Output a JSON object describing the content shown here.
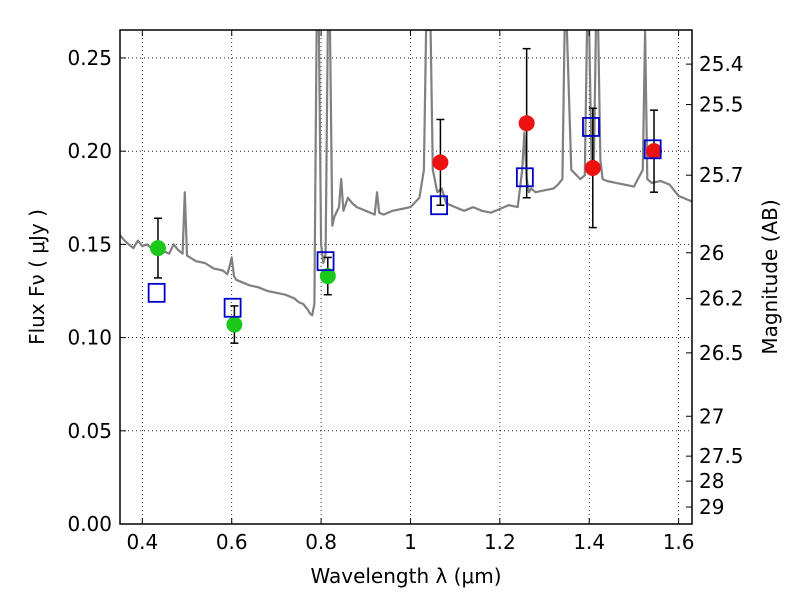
{
  "chart_data": {
    "type": "scatter",
    "xlabel": "Wavelength  λ (μm)",
    "ylabel": "Flux  Fν  ( μJy )",
    "y2label": "Magnitude (AB)",
    "xlim": [
      0.35,
      1.63
    ],
    "ylim": [
      0.0,
      0.265
    ],
    "grid": true,
    "x_ticks": [
      0.4,
      0.6,
      0.8,
      1.0,
      1.2,
      1.4,
      1.6
    ],
    "x_tick_labels": [
      "0.4",
      "0.6",
      "0.8",
      "1",
      "1.2",
      "1.4",
      "1.6"
    ],
    "y_ticks": [
      0.0,
      0.05,
      0.1,
      0.15,
      0.2,
      0.25
    ],
    "y_tick_labels": [
      "0.00",
      "0.05",
      "0.10",
      "0.15",
      "0.20",
      "0.25"
    ],
    "y2_ticks": [
      {
        "label": "25.4",
        "flux": 0.2467
      },
      {
        "label": "25.5",
        "flux": 0.225
      },
      {
        "label": "25.7",
        "flux": 0.1871
      },
      {
        "label": "26",
        "flux": 0.1455
      },
      {
        "label": "26.2",
        "flux": 0.1209
      },
      {
        "label": "26.5",
        "flux": 0.0918
      },
      {
        "label": "27",
        "flux": 0.0578
      },
      {
        "label": "27.5",
        "flux": 0.0364
      },
      {
        "label": "28",
        "flux": 0.023
      },
      {
        "label": "29",
        "flux": 0.0091
      }
    ],
    "series": [
      {
        "kind": "line",
        "color": "#808080",
        "x": [
          0.35,
          0.36,
          0.37,
          0.38,
          0.39,
          0.4,
          0.41,
          0.42,
          0.43,
          0.44,
          0.45,
          0.46,
          0.47,
          0.48,
          0.49,
          0.495,
          0.5,
          0.52,
          0.54,
          0.56,
          0.58,
          0.59,
          0.595,
          0.6,
          0.605,
          0.61,
          0.62,
          0.64,
          0.66,
          0.68,
          0.7,
          0.72,
          0.74,
          0.75,
          0.76,
          0.77,
          0.775,
          0.78,
          0.785,
          0.79,
          0.795,
          0.8,
          0.805,
          0.81,
          0.815,
          0.82,
          0.825,
          0.83,
          0.84,
          0.845,
          0.85,
          0.86,
          0.87,
          0.88,
          0.9,
          0.92,
          0.925,
          0.93,
          0.94,
          0.96,
          0.98,
          1.0,
          1.02,
          1.03,
          1.035,
          1.04,
          1.045,
          1.05,
          1.06,
          1.07,
          1.08,
          1.1,
          1.12,
          1.14,
          1.16,
          1.18,
          1.2,
          1.22,
          1.24,
          1.25,
          1.255,
          1.26,
          1.265,
          1.27,
          1.28,
          1.3,
          1.32,
          1.33,
          1.34,
          1.345,
          1.35,
          1.36,
          1.38,
          1.39,
          1.395,
          1.4,
          1.405,
          1.41,
          1.415,
          1.42,
          1.425,
          1.43,
          1.44,
          1.46,
          1.48,
          1.5,
          1.52,
          1.525,
          1.53,
          1.54,
          1.56,
          1.58,
          1.6,
          1.62,
          1.63
        ],
        "y": [
          0.155,
          0.152,
          0.15,
          0.148,
          0.152,
          0.149,
          0.15,
          0.148,
          0.147,
          0.146,
          0.146,
          0.145,
          0.15,
          0.147,
          0.145,
          0.178,
          0.144,
          0.141,
          0.14,
          0.137,
          0.136,
          0.134,
          0.138,
          0.143,
          0.133,
          0.131,
          0.13,
          0.128,
          0.127,
          0.125,
          0.124,
          0.123,
          0.121,
          0.119,
          0.118,
          0.115,
          0.113,
          0.112,
          0.118,
          0.265,
          0.265,
          0.15,
          0.14,
          0.145,
          0.265,
          0.265,
          0.16,
          0.165,
          0.17,
          0.185,
          0.168,
          0.175,
          0.172,
          0.17,
          0.168,
          0.166,
          0.178,
          0.167,
          0.166,
          0.168,
          0.169,
          0.17,
          0.175,
          0.19,
          0.265,
          0.265,
          0.265,
          0.19,
          0.178,
          0.18,
          0.172,
          0.17,
          0.168,
          0.17,
          0.168,
          0.167,
          0.169,
          0.171,
          0.17,
          0.19,
          0.21,
          0.185,
          0.178,
          0.18,
          0.178,
          0.179,
          0.18,
          0.182,
          0.185,
          0.265,
          0.265,
          0.19,
          0.185,
          0.187,
          0.265,
          0.265,
          0.195,
          0.188,
          0.265,
          0.265,
          0.195,
          0.185,
          0.184,
          0.183,
          0.182,
          0.181,
          0.19,
          0.265,
          0.185,
          0.183,
          0.184,
          0.182,
          0.176,
          0.174,
          0.173
        ]
      },
      {
        "kind": "points",
        "marker": "circle",
        "color": "#19c819",
        "x": [
          0.435,
          0.606,
          0.815
        ],
        "y": [
          0.148,
          0.107,
          0.133
        ],
        "err": [
          0.016,
          0.01,
          0.01
        ]
      },
      {
        "kind": "points",
        "marker": "circle",
        "color": "#ee1111",
        "x": [
          1.067,
          1.26,
          1.408,
          1.545
        ],
        "y": [
          0.194,
          0.215,
          0.191,
          0.2
        ],
        "err": [
          0.023,
          0.04,
          0.032,
          0.022
        ]
      },
      {
        "kind": "points",
        "marker": "open-square",
        "color": "#0000cc",
        "x": [
          0.432,
          0.602,
          0.81,
          1.064,
          1.256,
          1.404,
          1.542
        ],
        "y": [
          0.124,
          0.116,
          0.141,
          0.171,
          0.186,
          0.213,
          0.201
        ]
      }
    ]
  }
}
